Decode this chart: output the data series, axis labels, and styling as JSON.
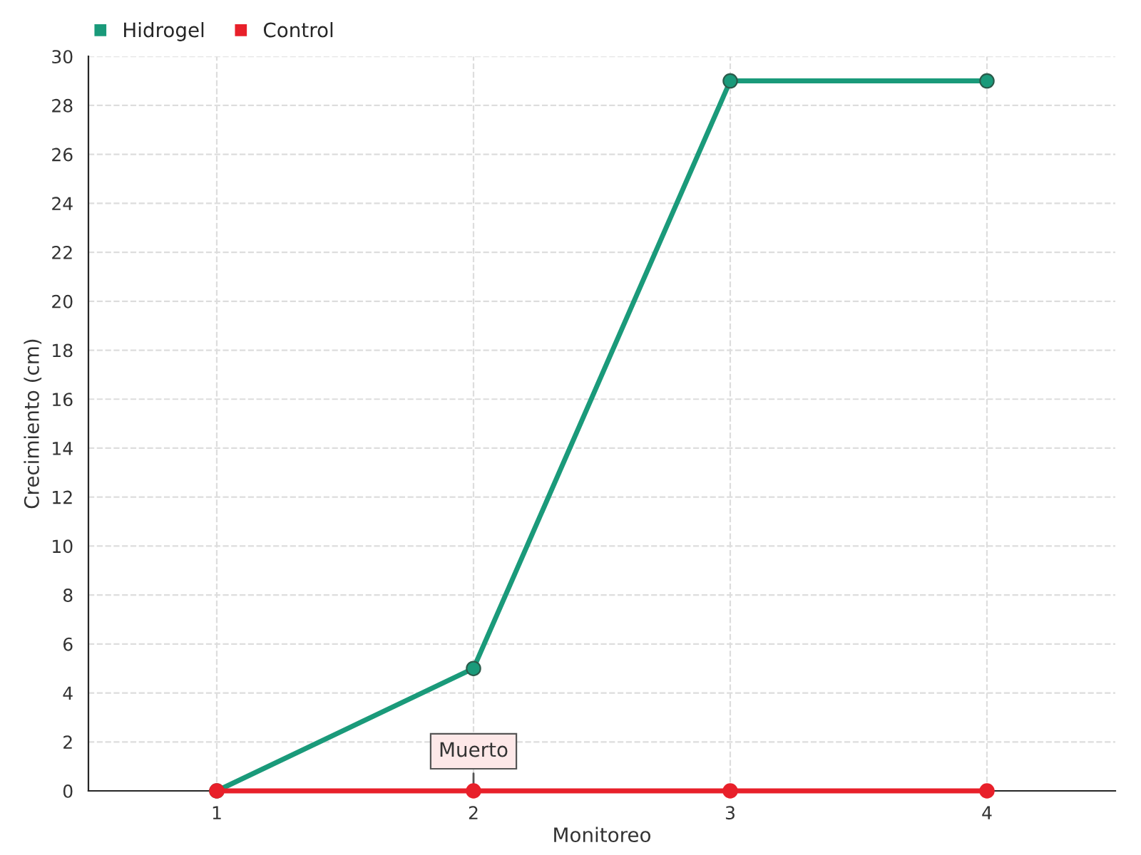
{
  "chart_data": {
    "type": "line",
    "xlabel": "Monitoreo",
    "ylabel": "Crecimiento (cm)",
    "categories": [
      "1",
      "2",
      "3",
      "4"
    ],
    "series": [
      {
        "name": "Hidrogel",
        "color": "#1a9a7a",
        "values": [
          0,
          5,
          29,
          29
        ]
      },
      {
        "name": "Control",
        "color": "#e8202a",
        "values": [
          0,
          0,
          0,
          0
        ]
      }
    ],
    "ylim": [
      0,
      30
    ],
    "yticks": [
      0,
      2,
      4,
      6,
      8,
      10,
      12,
      14,
      16,
      18,
      20,
      22,
      24,
      26,
      28,
      30
    ],
    "grid": true,
    "legend": "top left",
    "marker": "circle",
    "line_style": "solid",
    "annotations": [
      {
        "text": "Muerto",
        "x": "2",
        "y": 0
      }
    ]
  }
}
